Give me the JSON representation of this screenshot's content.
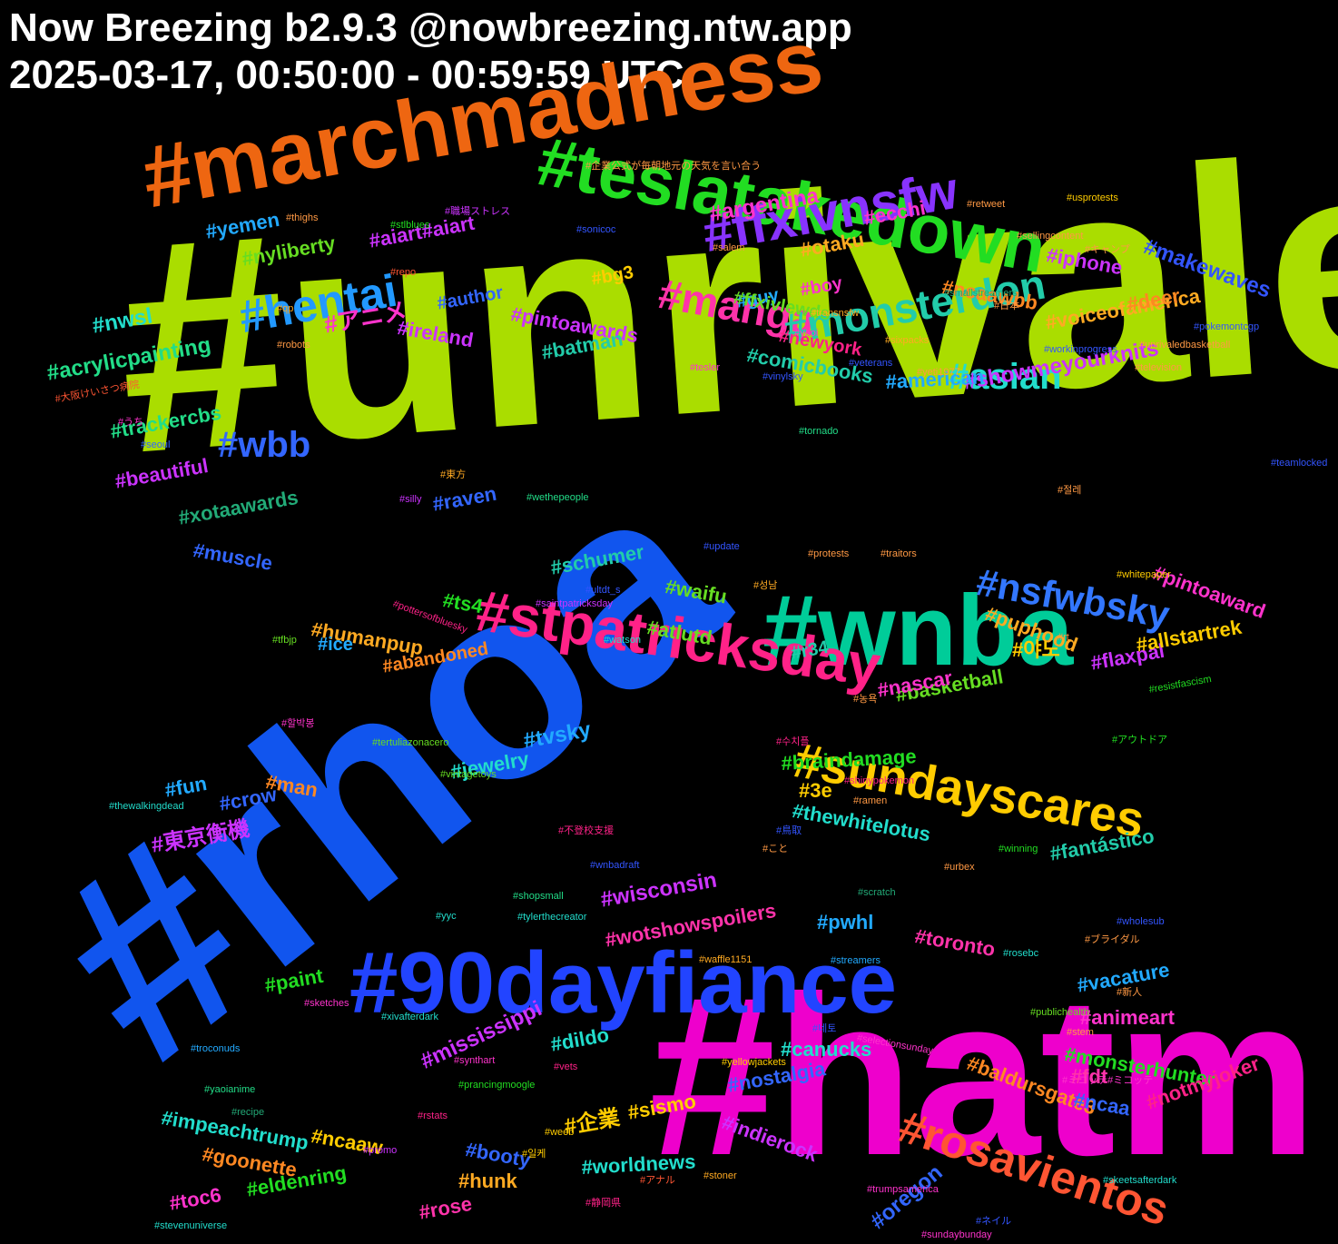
{
  "header": {
    "line1": "Now Breezing b2.9.3 @nowbreezing.ntw.app",
    "line2": "2025-03-17, 00:50:00 - 00:59:59 UTC"
  },
  "words": [
    {
      "text": "#unrivaled",
      "color": "#aadd00",
      "weight": 100
    },
    {
      "text": "#rhoa",
      "color": "#1155ee",
      "weight": 90
    },
    {
      "text": "#hatm",
      "color": "#ee00cc",
      "weight": 80
    },
    {
      "text": "#marchmadness",
      "color": "#ee6611",
      "weight": 50
    },
    {
      "text": "#wnba",
      "color": "#00cc99",
      "weight": 48
    },
    {
      "text": "#90dayfiance",
      "color": "#2244ff",
      "weight": 46
    },
    {
      "text": "#teslatakedown",
      "color": "#22dd22",
      "weight": 42
    },
    {
      "text": "#stpatricksday",
      "color": "#ff2288",
      "weight": 40
    },
    {
      "text": "#ffxivnsfw",
      "color": "#8833ff",
      "weight": 36
    },
    {
      "text": "#sundayscares",
      "color": "#ffcc00",
      "weight": 34
    },
    {
      "text": "#rosavientos",
      "color": "#ff5533",
      "weight": 30
    },
    {
      "text": "#hentai",
      "color": "#2299ff",
      "weight": 30
    },
    {
      "text": "#manga",
      "color": "#ff33aa",
      "weight": 28
    },
    {
      "text": "#monsterdon",
      "color": "#22ccaa",
      "weight": 28
    },
    {
      "text": "#nsfwbsky",
      "color": "#3377ff",
      "weight": 26
    },
    {
      "text": "#asian",
      "color": "#22ddcc",
      "weight": 24
    },
    {
      "text": "#wbb",
      "color": "#3366ff",
      "weight": 24
    },
    {
      "text": "#yemen",
      "color": "#22aaff",
      "weight": 16
    },
    {
      "text": "#nyliberty",
      "color": "#66dd22",
      "weight": 16
    },
    {
      "text": "#aiart",
      "color": "#cc33ff",
      "weight": 16
    },
    {
      "text": "#aiart2",
      "color": "#cc33ff",
      "weight": 16
    },
    {
      "text": "#argentina",
      "color": "#ff33cc",
      "weight": 16
    },
    {
      "text": "#otaku",
      "color": "#ffaa22",
      "weight": 16
    },
    {
      "text": "#ecchi",
      "color": "#ff33cc",
      "weight": 16
    },
    {
      "text": "#iphone",
      "color": "#cc33ff",
      "weight": 16
    },
    {
      "text": "#makewaves",
      "color": "#3355ff",
      "weight": 16
    }
  ]
}
